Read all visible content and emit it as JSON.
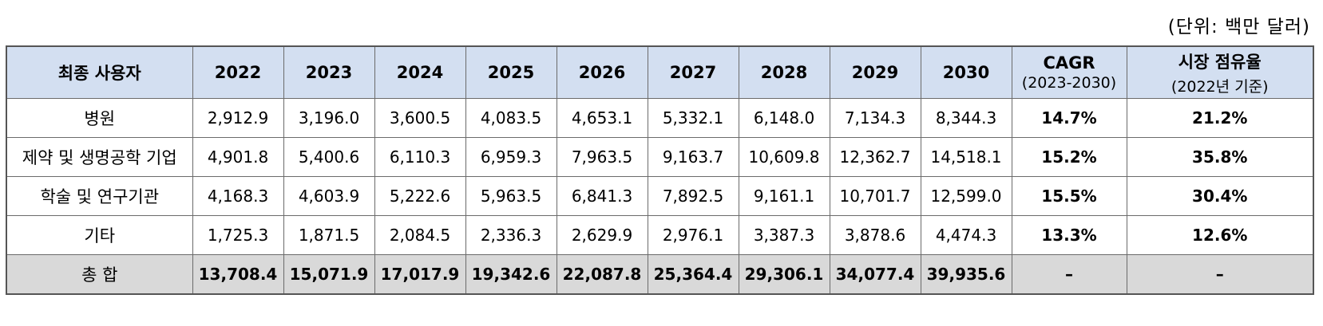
{
  "unit_note": "(단위: 백만 달러)",
  "header": {
    "end_user": "최종 사용자",
    "years": [
      "2022",
      "2023",
      "2024",
      "2025",
      "2026",
      "2027",
      "2028",
      "2029",
      "2030"
    ],
    "cagr": "CAGR",
    "cagr_period": "(2023-2030)",
    "share": "시장 점유율",
    "share_basis": "(2022년 기준)"
  },
  "rows": [
    {
      "label": "병원",
      "values": [
        "2,912.9",
        "3,196.0",
        "3,600.5",
        "4,083.5",
        "4,653.1",
        "5,332.1",
        "6,148.0",
        "7,134.3",
        "8,344.3"
      ],
      "cagr": "14.7%",
      "share": "21.2%"
    },
    {
      "label": "제약 및 생명공학 기업",
      "values": [
        "4,901.8",
        "5,400.6",
        "6,110.3",
        "6,959.3",
        "7,963.5",
        "9,163.7",
        "10,609.8",
        "12,362.7",
        "14,518.1"
      ],
      "cagr": "15.2%",
      "share": "35.8%"
    },
    {
      "label": "학술 및 연구기관",
      "values": [
        "4,168.3",
        "4,603.9",
        "5,222.6",
        "5,963.5",
        "6,841.3",
        "7,892.5",
        "9,161.1",
        "10,701.7",
        "12,599.0"
      ],
      "cagr": "15.5%",
      "share": "30.4%"
    },
    {
      "label": "기타",
      "values": [
        "1,725.3",
        "1,871.5",
        "2,084.5",
        "2,336.3",
        "2,629.9",
        "2,976.1",
        "3,387.3",
        "3,878.6",
        "4,474.3"
      ],
      "cagr": "13.3%",
      "share": "12.6%"
    }
  ],
  "total": {
    "label": "총 합",
    "values": [
      "13,708.4",
      "15,071.9",
      "17,017.9",
      "19,342.6",
      "22,087.8",
      "25,364.4",
      "29,306.1",
      "34,077.4",
      "39,935.6"
    ],
    "cagr": "–",
    "share": "–"
  }
}
